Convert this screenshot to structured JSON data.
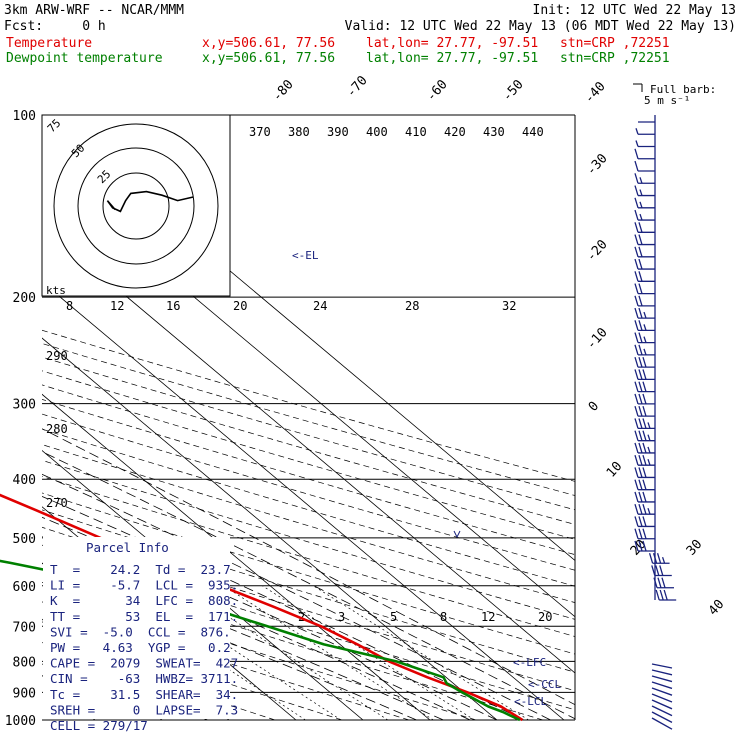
{
  "header": {
    "model": "3km ARW-WRF -- NCAR/MMM",
    "init": "Init: 12 UTC Wed 22 May 13",
    "fcst": "Fcst:     0 h",
    "valid": "Valid: 12 UTC Wed 22 May 13 (06 MDT Wed 22 May 13)",
    "temp_label": "Temperature",
    "dew_label": "Dewpoint temperature",
    "xy": "x,y=506.61, 77.56",
    "latlon": "lat,lon= 27.77, -97.51",
    "stn": "stn=CRP ,72251"
  },
  "colors": {
    "temperature": "#e00000",
    "dewpoint": "#008000",
    "annot": "#1a237e",
    "barb": "#1a237e"
  },
  "barb_legend": {
    "title": "Full barb:",
    "value": "5 m s⁻¹"
  },
  "el_label": "<-EL",
  "lfc_label": "<-LFC",
  "ccl_label": "<-CCL",
  "lcl_label": "<-LCL",
  "hodograph_units": "kts",
  "hodograph_rings": [
    "25",
    "50",
    "75"
  ],
  "parcel_info": {
    "title": "Parcel Info",
    "rows": [
      "T  =    24.2  Td =  23.7",
      "LI =    -5.7  LCL =  935.",
      "K  =      34  LFC =  808.",
      "TT =      53  EL  =  171.",
      "SVI =  -5.0  CCL =  876.",
      "PW =   4.63  YGP =   0.2",
      "CAPE =  2079  SWEAT=  427",
      "CIN =    -63  HWBZ= 3711.",
      "Tc =    31.5  SHEAR=  34.",
      "SREH =     0  LAPSE=  7.3",
      "CELL = 279/17"
    ]
  },
  "chart_data": {
    "type": "skew-t log-p",
    "pressure_levels": [
      100,
      200,
      300,
      400,
      500,
      600,
      700,
      800,
      900,
      1000
    ],
    "pressure_labels": [
      "100",
      "200",
      "300",
      "400",
      "500",
      "600",
      "700",
      "800",
      "900",
      "1000"
    ],
    "isotherm_labels": [
      "-80",
      "-70",
      "-60",
      "-50",
      "-40",
      "-30",
      "-20",
      "-10",
      "0",
      "10",
      "20",
      "30",
      "40"
    ],
    "theta_labels": [
      "370",
      "380",
      "390",
      "400",
      "410",
      "420",
      "430",
      "440"
    ],
    "theta_labels_left": [
      "290",
      "280",
      "270"
    ],
    "mixing_ratio_labels": [
      "2",
      "3",
      "5",
      "8",
      "12",
      "20"
    ],
    "wetbulb_labels": [
      "8",
      "12",
      "16",
      "20",
      "24",
      "28",
      "32"
    ],
    "series": [
      {
        "name": "Temperature",
        "points": [
          [
            1000,
            23.8
          ],
          [
            950,
            23.0
          ],
          [
            900,
            20.5
          ],
          [
            850,
            17.2
          ],
          [
            800,
            14.3
          ],
          [
            750,
            12.6
          ],
          [
            700,
            10.4
          ],
          [
            650,
            6.8
          ],
          [
            600,
            2.6
          ],
          [
            550,
            -1.8
          ],
          [
            500,
            -6.8
          ],
          [
            450,
            -11.5
          ],
          [
            400,
            -17.0
          ],
          [
            350,
            -23.5
          ],
          [
            300,
            -30.5
          ],
          [
            250,
            -39.5
          ],
          [
            200,
            -51.5
          ],
          [
            185,
            -55.0
          ],
          [
            150,
            -60.5
          ],
          [
            120,
            -62.5
          ],
          [
            100,
            -62.0
          ]
        ]
      },
      {
        "name": "Dewpoint temperature",
        "points": [
          [
            1000,
            23.4
          ],
          [
            970,
            22.3
          ],
          [
            950,
            21.1
          ],
          [
            900,
            19.7
          ],
          [
            870,
            19.0
          ],
          [
            850,
            19.6
          ],
          [
            800,
            15.4
          ],
          [
            750,
            7.6
          ],
          [
            700,
            2.4
          ],
          [
            650,
            -3.3
          ],
          [
            600,
            -11.9
          ],
          [
            550,
            -24.7
          ],
          [
            500,
            -40.0
          ],
          [
            460,
            -53.5
          ],
          [
            420,
            -54.8
          ],
          [
            380,
            -57.7
          ],
          [
            330,
            -62.0
          ],
          [
            270,
            -70.0
          ],
          [
            250,
            -67.0
          ],
          [
            200,
            -66.0
          ],
          [
            150,
            -69.5
          ],
          [
            120,
            -73.5
          ],
          [
            100,
            -74.5
          ]
        ]
      }
    ],
    "wind_barbs": {
      "speed_ms": [
        2,
        3,
        4,
        6,
        7,
        8,
        8,
        9,
        9,
        10,
        10,
        11,
        11,
        12,
        12,
        12,
        13,
        13,
        14,
        14,
        15,
        16,
        16,
        17,
        17,
        18,
        18,
        19,
        19,
        20,
        21,
        22,
        24,
        25,
        26,
        27,
        28,
        27,
        25,
        22
      ]
    },
    "hodograph_trace_kts": [
      [
        22,
        -5
      ],
      [
        16,
        -3
      ],
      [
        10,
        -6
      ],
      [
        4,
        -8
      ],
      [
        -2,
        -7
      ],
      [
        -4,
        -3
      ],
      [
        -6,
        3
      ],
      [
        -9,
        1
      ],
      [
        -11,
        -3
      ],
      [
        -8,
        2
      ]
    ]
  }
}
